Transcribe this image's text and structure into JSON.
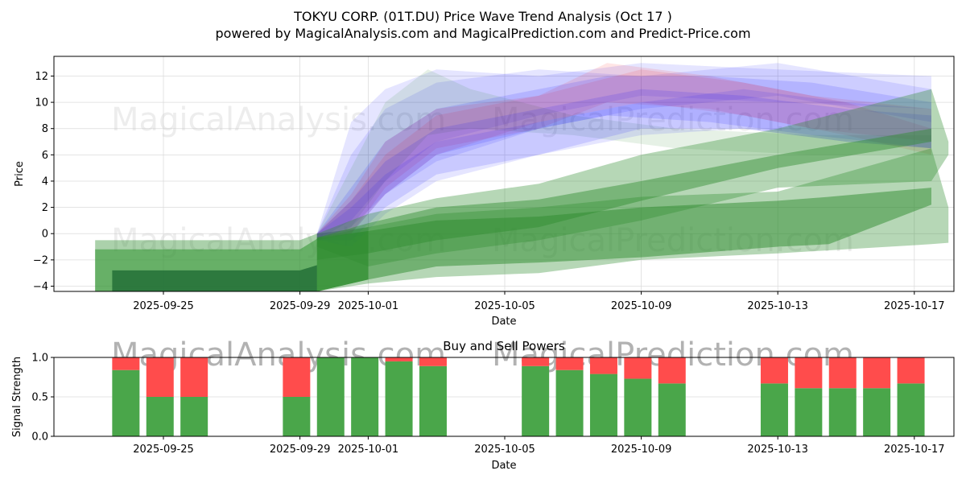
{
  "title": "TOKYU CORP. (01T.DU) Price Wave Trend Analysis (Oct 17 )",
  "subtitle": "powered by MagicalAnalysis.com and MagicalPrediction.com and Predict-Price.com",
  "watermarks": [
    "MagicalAnalysis.com",
    "MagicalPrediction.com"
  ],
  "chart_data": [
    {
      "type": "area",
      "title": "",
      "xlabel": "Date",
      "ylabel": "Price",
      "ylim": [
        -4.4,
        13.5
      ],
      "xlim": [
        "2025-09-22T12",
        "2025-10-18T18"
      ],
      "grid": true,
      "yticks": [
        -4,
        -2,
        0,
        2,
        4,
        6,
        8,
        10,
        12
      ],
      "ytick_labels": [
        "−4",
        "−2",
        "0",
        "2",
        "4",
        "6",
        "8",
        "10",
        "12"
      ],
      "xticks": [
        "2025-09-25",
        "2025-09-29",
        "2025-10-01",
        "2025-10-05",
        "2025-10-09",
        "2025-10-13",
        "2025-10-17"
      ],
      "history_bands": [
        {
          "color": "#2e8b2e",
          "opacity": 0.4,
          "x": [
            "2025-09-23",
            "2025-09-29",
            "2025-09-29T12",
            "2025-10-01"
          ],
          "upper": [
            -0.5,
            -0.5,
            0.0,
            0.5
          ],
          "lower": [
            -4.4,
            -4.4,
            -4.4,
            -3.5
          ]
        },
        {
          "color": "#3a9a3a",
          "opacity": 0.6,
          "x": [
            "2025-09-23",
            "2025-09-29",
            "2025-09-29T12",
            "2025-10-01"
          ],
          "upper": [
            -1.2,
            -1.2,
            -0.4,
            0.2
          ],
          "lower": [
            -4.4,
            -4.4,
            -4.4,
            -3.5
          ]
        },
        {
          "color": "#1f6b35",
          "opacity": 0.8,
          "x": [
            "2025-09-23T12",
            "2025-09-29",
            "2025-09-29T12"
          ],
          "upper": [
            -2.8,
            -2.8,
            -2.4
          ],
          "lower": [
            -4.4,
            -4.4,
            -4.4
          ]
        }
      ],
      "forecast_bands": [
        {
          "color": "#0000ff",
          "opacity": 0.1,
          "x": [
            "2025-09-29T12",
            "2025-09-30T12",
            "2025-10-01T12",
            "2025-10-03",
            "2025-10-06",
            "2025-10-09",
            "2025-10-13",
            "2025-10-17T12"
          ],
          "upper": [
            0.0,
            8.5,
            11.0,
            12.5,
            12.0,
            13.0,
            12.5,
            12.0
          ],
          "lower": [
            -0.5,
            1.0,
            4.0,
            7.0,
            9.0,
            10.5,
            10.0,
            9.5
          ]
        },
        {
          "color": "#0000ff",
          "opacity": 0.1,
          "x": [
            "2025-09-29T12",
            "2025-09-30T12",
            "2025-10-01T12",
            "2025-10-03",
            "2025-10-06",
            "2025-10-09",
            "2025-10-13",
            "2025-10-17T12"
          ],
          "upper": [
            0.0,
            6.0,
            9.5,
            11.5,
            12.5,
            12.0,
            13.0,
            11.0
          ],
          "lower": [
            -0.5,
            0.5,
            3.0,
            5.5,
            8.0,
            9.5,
            10.5,
            8.5
          ]
        },
        {
          "color": "#2e8b2e",
          "opacity": 0.12,
          "x": [
            "2025-09-29T12",
            "2025-09-30T12",
            "2025-10-01T12",
            "2025-10-02T18",
            "2025-10-04",
            "2025-10-07",
            "2025-10-10",
            "2025-10-14",
            "2025-10-17T12"
          ],
          "upper": [
            0.0,
            5.0,
            10.0,
            12.5,
            11.0,
            9.0,
            8.0,
            7.5,
            7.5
          ],
          "lower": [
            -0.5,
            0.5,
            4.0,
            7.5,
            8.0,
            7.5,
            6.5,
            6.0,
            6.0
          ]
        },
        {
          "color": "#ff0000",
          "opacity": 0.1,
          "x": [
            "2025-09-29T12",
            "2025-09-30T12",
            "2025-10-01T12",
            "2025-10-03",
            "2025-10-06",
            "2025-10-08",
            "2025-10-11",
            "2025-10-14",
            "2025-10-17T12"
          ],
          "upper": [
            0.0,
            3.0,
            7.0,
            9.5,
            10.5,
            13.0,
            12.0,
            10.5,
            9.5
          ],
          "lower": [
            -0.5,
            0.0,
            3.5,
            6.5,
            8.0,
            10.0,
            9.5,
            8.0,
            7.0
          ]
        },
        {
          "color": "#ff0000",
          "opacity": 0.1,
          "x": [
            "2025-09-29T12",
            "2025-09-30T12",
            "2025-10-01T12",
            "2025-10-03",
            "2025-10-06",
            "2025-10-09",
            "2025-10-12",
            "2025-10-15",
            "2025-10-17T12"
          ],
          "upper": [
            0.0,
            2.5,
            6.0,
            9.0,
            10.5,
            12.5,
            11.5,
            10.0,
            8.0
          ],
          "lower": [
            -0.5,
            0.0,
            3.0,
            6.0,
            8.5,
            10.0,
            9.0,
            7.5,
            6.0
          ]
        },
        {
          "color": "#0000ff",
          "opacity": 0.12,
          "x": [
            "2025-09-29T12",
            "2025-09-30T12",
            "2025-10-01T12",
            "2025-10-03",
            "2025-10-06",
            "2025-10-08",
            "2025-10-11",
            "2025-10-14",
            "2025-10-17T12"
          ],
          "upper": [
            0.0,
            3.5,
            7.0,
            9.5,
            11.0,
            12.0,
            12.0,
            11.5,
            10.0
          ],
          "lower": [
            -0.5,
            0.0,
            3.0,
            6.0,
            8.0,
            9.0,
            8.5,
            7.5,
            6.5
          ]
        },
        {
          "color": "#0000ff",
          "opacity": 0.12,
          "x": [
            "2025-09-29T12",
            "2025-09-30T12",
            "2025-10-01T12",
            "2025-10-03",
            "2025-10-06",
            "2025-10-09",
            "2025-10-12",
            "2025-10-15",
            "2025-10-17T12"
          ],
          "upper": [
            0.0,
            2.5,
            5.5,
            8.0,
            9.5,
            11.0,
            10.5,
            9.5,
            9.0
          ],
          "lower": [
            -0.5,
            -0.5,
            2.0,
            4.5,
            6.0,
            8.0,
            8.0,
            7.0,
            6.5
          ]
        },
        {
          "color": "#0000ff",
          "opacity": 0.1,
          "x": [
            "2025-09-29T12",
            "2025-09-30T12",
            "2025-10-01T12",
            "2025-10-03",
            "2025-10-06",
            "2025-10-09",
            "2025-10-12",
            "2025-10-15",
            "2025-10-17T12"
          ],
          "upper": [
            0.0,
            2.0,
            4.5,
            7.0,
            8.5,
            10.0,
            11.0,
            10.0,
            9.5
          ],
          "lower": [
            -0.5,
            -1.0,
            1.5,
            4.0,
            6.0,
            7.5,
            8.0,
            7.0,
            6.5
          ]
        },
        {
          "color": "#2e8b2e",
          "opacity": 0.35,
          "x": [
            "2025-09-29T12",
            "2025-10-01",
            "2025-10-03",
            "2025-10-06",
            "2025-10-09",
            "2025-10-13",
            "2025-10-17T12",
            "2025-10-18"
          ],
          "upper": [
            0.0,
            1.5,
            2.7,
            3.8,
            6.0,
            8.0,
            11.0,
            7.0
          ],
          "lower": [
            -1.0,
            -2.5,
            -1.5,
            -0.5,
            1.0,
            3.5,
            4.0,
            6.0
          ]
        },
        {
          "color": "#2e8b2e",
          "opacity": 0.35,
          "x": [
            "2025-09-29T12",
            "2025-10-01",
            "2025-10-03",
            "2025-10-06",
            "2025-10-09",
            "2025-10-13",
            "2025-10-17T12",
            "2025-10-18"
          ],
          "upper": [
            -0.3,
            0.5,
            1.5,
            2.0,
            2.8,
            3.2,
            6.5,
            2.0
          ],
          "lower": [
            -4.4,
            -3.8,
            -3.3,
            -3.0,
            -2.0,
            -1.5,
            -0.8,
            -0.7
          ]
        },
        {
          "color": "#2e8b2e",
          "opacity": 0.5,
          "x": [
            "2025-09-29T12",
            "2025-10-01",
            "2025-10-03",
            "2025-10-06",
            "2025-10-09",
            "2025-10-13",
            "2025-10-14T12",
            "2025-10-17T12"
          ],
          "upper": [
            -0.3,
            0.2,
            1.0,
            1.3,
            2.0,
            2.5,
            2.8,
            3.5
          ],
          "lower": [
            -4.4,
            -3.5,
            -2.5,
            -2.2,
            -1.8,
            -1.0,
            -0.8,
            2.2
          ]
        },
        {
          "color": "#2e8b2e",
          "opacity": 0.45,
          "x": [
            "2025-09-29T12",
            "2025-10-01",
            "2025-10-03",
            "2025-10-06",
            "2025-10-09",
            "2025-10-13",
            "2025-10-17T12"
          ],
          "upper": [
            -0.3,
            0.8,
            2.0,
            2.6,
            4.0,
            6.0,
            8.0
          ],
          "lower": [
            -2.0,
            -1.5,
            -0.5,
            0.5,
            2.5,
            5.0,
            7.0
          ]
        }
      ]
    },
    {
      "type": "bar",
      "title": "Buy and Sell Powers",
      "xlabel": "Date",
      "ylabel": "Signal Strength",
      "ylim": [
        0,
        1.0
      ],
      "yticks": [
        0.0,
        0.5,
        1.0
      ],
      "ytick_labels": [
        "0.0",
        "0.5",
        "1.0"
      ],
      "xticks": [
        "2025-09-25",
        "2025-09-29",
        "2025-10-01",
        "2025-10-05",
        "2025-10-09",
        "2025-10-13",
        "2025-10-17"
      ],
      "legend": [],
      "categories": [
        "2025-09-24",
        "2025-09-25",
        "2025-09-26",
        "2025-09-29",
        "2025-09-30",
        "2025-10-01",
        "2025-10-02",
        "2025-10-03",
        "2025-10-06",
        "2025-10-07",
        "2025-10-08",
        "2025-10-09",
        "2025-10-10",
        "2025-10-13",
        "2025-10-14",
        "2025-10-15",
        "2025-10-16",
        "2025-10-17"
      ],
      "series": [
        {
          "name": "Buy",
          "color": "#4aa64a",
          "values": [
            0.84,
            0.5,
            0.5,
            0.5,
            1.0,
            1.0,
            0.95,
            0.89,
            0.89,
            0.84,
            0.79,
            0.73,
            0.67,
            0.67,
            0.61,
            0.61,
            0.61,
            0.67
          ]
        },
        {
          "name": "Sell",
          "color": "#ff4c4c",
          "values": [
            0.16,
            0.5,
            0.5,
            0.5,
            0.0,
            0.0,
            0.05,
            0.11,
            0.11,
            0.16,
            0.21,
            0.27,
            0.33,
            0.33,
            0.39,
            0.39,
            0.39,
            0.33
          ]
        }
      ]
    }
  ]
}
